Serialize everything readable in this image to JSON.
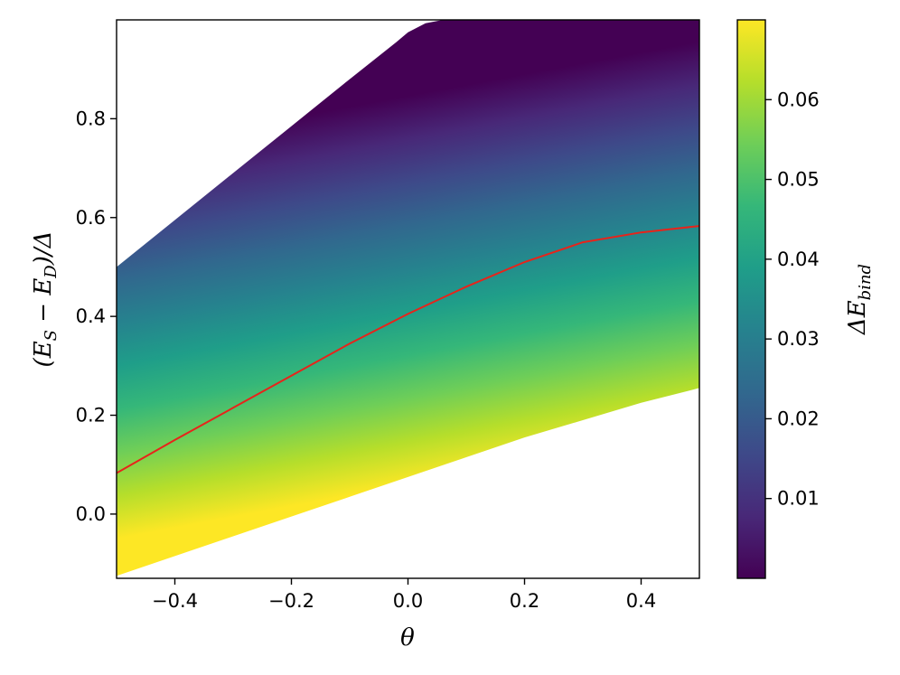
{
  "chart_data": {
    "type": "heatmap",
    "title": "",
    "xlabel": "θ",
    "ylabel_parts": [
      "(E",
      "S",
      " − E",
      "D",
      ")/Δ"
    ],
    "colorbar_label_parts": [
      "ΔE",
      "bind"
    ],
    "xlim": [
      -0.5,
      0.5
    ],
    "ylim": [
      -0.13,
      1.0
    ],
    "colorbar_range": [
      0.0,
      0.07
    ],
    "colormap": "viridis",
    "x_ticks": [
      -0.4,
      -0.2,
      0.0,
      0.2,
      0.4
    ],
    "x_tick_labels": [
      "−0.4",
      "−0.2",
      "0.0",
      "0.2",
      "0.4"
    ],
    "y_ticks": [
      0.0,
      0.2,
      0.4,
      0.6,
      0.8
    ],
    "y_tick_labels": [
      "0.0",
      "0.2",
      "0.4",
      "0.6",
      "0.8"
    ],
    "colorbar_ticks": [
      0.01,
      0.02,
      0.03,
      0.04,
      0.05,
      0.06
    ],
    "colorbar_tick_labels": [
      "0.01",
      "0.02",
      "0.03",
      "0.04",
      "0.05",
      "0.06"
    ],
    "region_upper_boundary": {
      "x": [
        -0.5,
        -0.4,
        -0.3,
        -0.2,
        -0.1,
        -0.02,
        0.0,
        0.03,
        0.06,
        0.5
      ],
      "y": [
        0.5,
        0.595,
        0.69,
        0.785,
        0.88,
        0.955,
        0.975,
        0.993,
        1.0,
        1.0
      ]
    },
    "region_lower_boundary": {
      "x": [
        -0.5,
        -0.4,
        -0.3,
        -0.2,
        -0.1,
        0.0,
        0.1,
        0.2,
        0.3,
        0.4,
        0.5
      ],
      "y": [
        -0.125,
        -0.085,
        -0.045,
        -0.005,
        0.035,
        0.075,
        0.115,
        0.155,
        0.19,
        0.225,
        0.255
      ]
    },
    "series": [
      {
        "color": "#e8231a",
        "x": [
          -0.5,
          -0.4,
          -0.3,
          -0.2,
          -0.1,
          0.0,
          0.1,
          0.2,
          0.3,
          0.4,
          0.5
        ],
        "y": [
          0.083,
          0.15,
          0.215,
          0.28,
          0.345,
          0.405,
          0.46,
          0.51,
          0.55,
          0.57,
          0.583
        ]
      }
    ],
    "grid": false,
    "legend": "none"
  }
}
